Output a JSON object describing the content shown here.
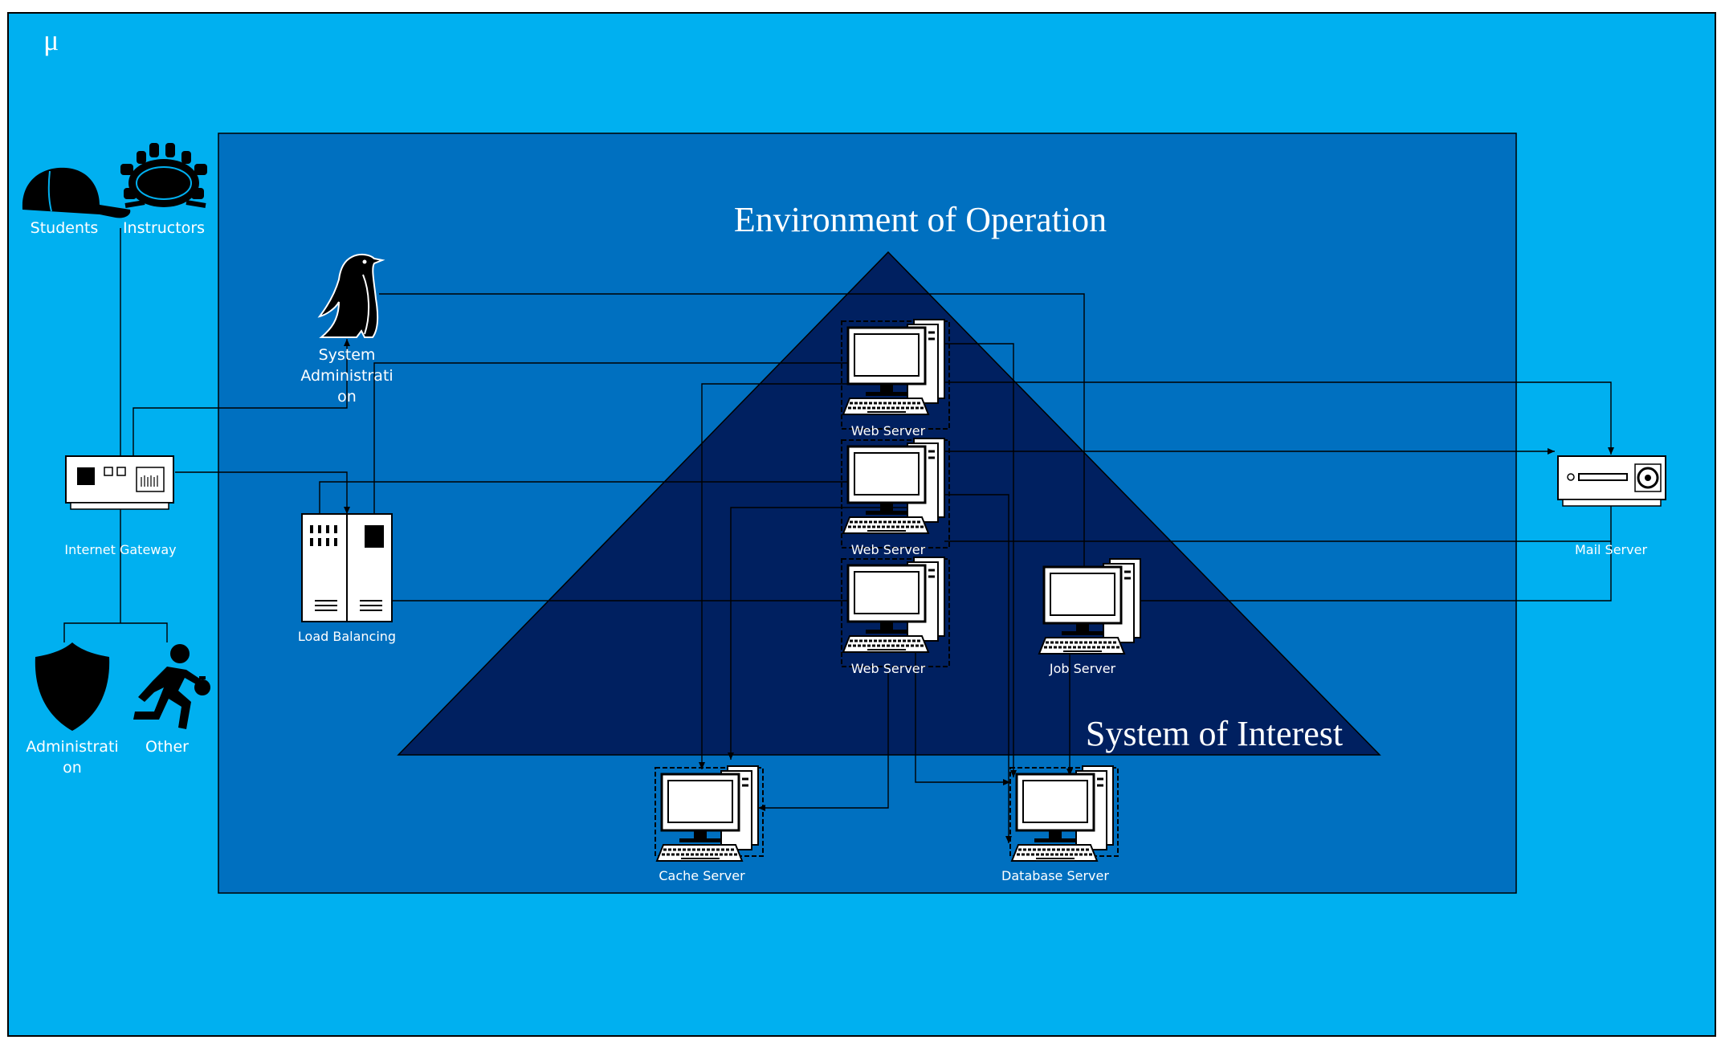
{
  "canvas": {
    "symbol": "μ"
  },
  "colors": {
    "outer": "#00b0f0",
    "environment": "#0070c0",
    "system": "#002060",
    "icon": "#000000",
    "device": "#ffffff"
  },
  "environment": {
    "title": "Environment of Operation"
  },
  "system": {
    "title": "System of Interest"
  },
  "actors": {
    "students": "Students",
    "instructors": "Instructors",
    "sysadmin": [
      "System",
      "Administrati",
      "on"
    ],
    "administration": [
      "Administrati",
      "on"
    ],
    "other": "Other"
  },
  "nodes": {
    "internet_gateway": "Internet Gateway",
    "load_balancing": "Load Balancing",
    "web_server_1": "Web Server",
    "web_server_2": "Web Server",
    "web_server_3": "Web Server",
    "job_server": "Job Server",
    "cache_server": "Cache Server",
    "database_server": "Database Server",
    "mail_server": "Mail Server"
  }
}
